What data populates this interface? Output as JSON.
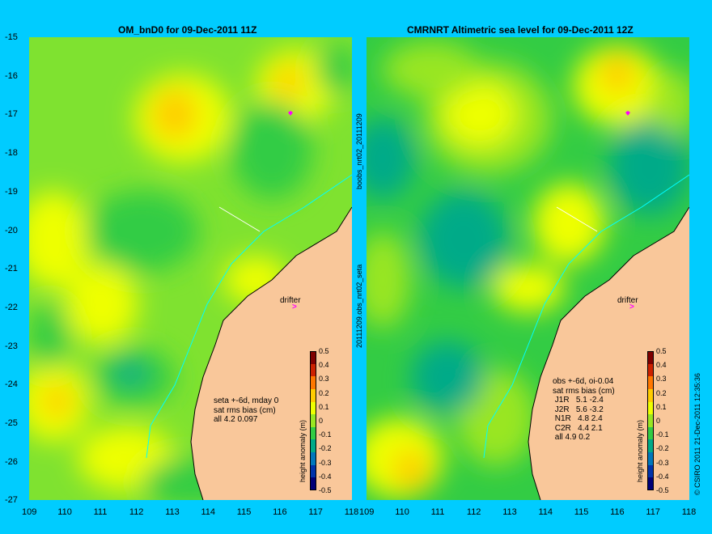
{
  "colors": {
    "background": "#00ccff",
    "land": "#f9c79a",
    "ocean_base": "#7fe230",
    "drifter": "#ff00ff"
  },
  "left_panel": {
    "title": "OM_bnD0 for 09-Dec-2011 11Z",
    "y_ticks": [
      "-15",
      "-16",
      "-17",
      "-18",
      "-19",
      "-20",
      "-21",
      "-22",
      "-23",
      "-24",
      "-25",
      "-26",
      "-27"
    ],
    "x_ticks": [
      "109",
      "110",
      "111",
      "112",
      "113",
      "114",
      "115",
      "116",
      "117",
      "118"
    ],
    "drifter_label": "drifter",
    "stats": [
      "seta +-6d, mday 0",
      "sat rms bias (cm)",
      "all 4.2 0.097"
    ],
    "colorbar_label": "height anomaly (m)"
  },
  "right_panel": {
    "title": "CMRNRT Altimetric sea level  for 09-Dec-2011 12Z",
    "x_ticks": [
      "109",
      "110",
      "111",
      "112",
      "113",
      "114",
      "115",
      "116",
      "117",
      "118"
    ],
    "drifter_label": "drifter",
    "stats": [
      "obs +-6d, oi-0.04",
      "sat rms bias (cm)",
      " J1R   5.1 -2.4",
      " J2R   5.6 -3.2",
      " N1R   4.8 2.4",
      " C2R   4.4 2.1",
      " all 4.9 0.2"
    ],
    "colorbar_label": "height anomaly (m)"
  },
  "middle_labels": {
    "upper": "boobs_nrt02_20111209",
    "lower": "20111209.obs_nrt02_seta"
  },
  "copyright": "© CSIRO 2011   21-Dec-2011 12:35:36",
  "colorbar_ticks": [
    "0.5",
    "0.4",
    "0.3",
    "0.2",
    "0.1",
    "0",
    "-0.1",
    "-0.2",
    "-0.3",
    "-0.4",
    "-0.5"
  ],
  "colorbar_colors": [
    "#7f0000",
    "#cc2200",
    "#ff7700",
    "#ffcc00",
    "#eeff00",
    "#99e622",
    "#33cc44",
    "#00aa88",
    "#0077bb",
    "#0033aa",
    "#000077"
  ]
}
